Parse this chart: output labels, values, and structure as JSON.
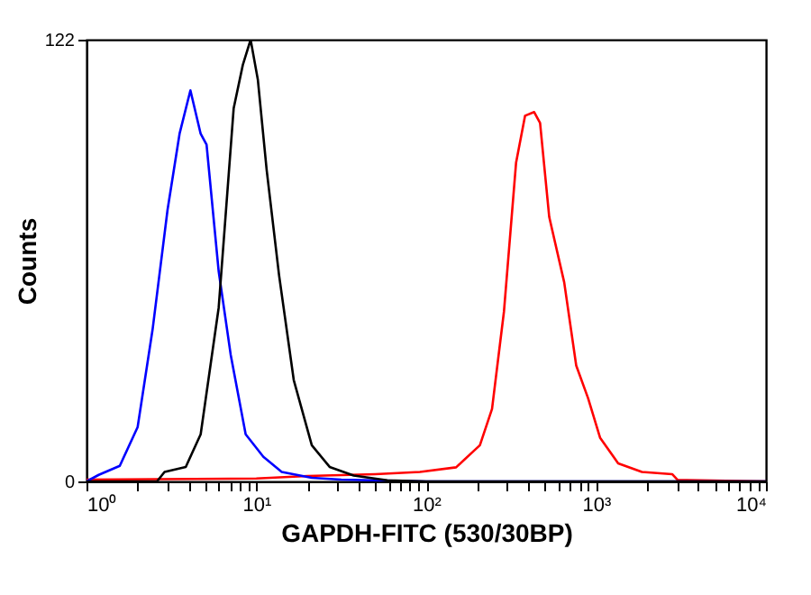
{
  "chart_data": {
    "type": "line",
    "xlabel": "GAPDH-FITC (530/30BP)",
    "ylabel": "Counts",
    "log": "x",
    "xlim": [
      1,
      10000
    ],
    "ylim": [
      0,
      122
    ],
    "yticks": [
      0,
      122
    ],
    "xticks": [
      {
        "value": 1,
        "label": "10⁰"
      },
      {
        "value": 2,
        "label": null
      },
      {
        "value": 3,
        "label": null
      },
      {
        "value": 4,
        "label": null
      },
      {
        "value": 5,
        "label": null
      },
      {
        "value": 6,
        "label": null
      },
      {
        "value": 7,
        "label": null
      },
      {
        "value": 8,
        "label": null
      },
      {
        "value": 9,
        "label": null
      },
      {
        "value": 10,
        "label": "10¹"
      },
      {
        "value": 20,
        "label": null
      },
      {
        "value": 30,
        "label": null
      },
      {
        "value": 40,
        "label": null
      },
      {
        "value": 50,
        "label": null
      },
      {
        "value": 60,
        "label": null
      },
      {
        "value": 70,
        "label": null
      },
      {
        "value": 80,
        "label": null
      },
      {
        "value": 90,
        "label": null
      },
      {
        "value": 100,
        "label": "10²"
      },
      {
        "value": 200,
        "label": null
      },
      {
        "value": 300,
        "label": null
      },
      {
        "value": 400,
        "label": null
      },
      {
        "value": 500,
        "label": null
      },
      {
        "value": 600,
        "label": null
      },
      {
        "value": 700,
        "label": null
      },
      {
        "value": 800,
        "label": null
      },
      {
        "value": 900,
        "label": null
      },
      {
        "value": 1000,
        "label": "10³"
      },
      {
        "value": 2000,
        "label": null
      },
      {
        "value": 3000,
        "label": null
      },
      {
        "value": 4000,
        "label": null
      },
      {
        "value": 5000,
        "label": null
      },
      {
        "value": 6000,
        "label": null
      },
      {
        "value": 7000,
        "label": null
      },
      {
        "value": 8000,
        "label": null
      },
      {
        "value": 9000,
        "label": null
      },
      {
        "value": 10000,
        "label": "10⁴"
      }
    ],
    "grid": false,
    "series": [
      {
        "color": "#ff0000",
        "x": [
          1,
          10,
          20,
          50,
          91.8,
          150,
          207,
          244,
          287,
          338,
          382,
          432,
          468,
          530,
          649,
          764,
          897,
          1057,
          1349,
          1862,
          2805,
          3020,
          10000
        ],
        "values": [
          0.5,
          0.8,
          1.5,
          2,
          2.6,
          3.9,
          10,
          20,
          47,
          88,
          101,
          102,
          99,
          73,
          55,
          32,
          23,
          12,
          5,
          2.6,
          2,
          0.4,
          0
        ]
      },
      {
        "color": "#0000ff",
        "x": [
          1,
          1.18,
          1.57,
          2.0,
          2.45,
          3.0,
          3.53,
          4.09,
          4.7,
          5.09,
          6.0,
          7.06,
          8.65,
          11.0,
          14.1,
          21.2,
          31.6,
          100,
          10000
        ],
        "values": [
          0,
          1.8,
          4.3,
          15,
          42,
          75,
          96,
          108,
          96,
          93,
          58,
          35,
          13,
          6.8,
          2.6,
          1,
          0.5,
          0,
          0
        ]
      },
      {
        "color": "#000000",
        "x": [
          1,
          2.6,
          2.88,
          3.84,
          4.7,
          6.0,
          7.35,
          8.32,
          9.25,
          10.2,
          11.5,
          13.6,
          16.6,
          21.2,
          27,
          37.4,
          59,
          100,
          10000
        ],
        "values": [
          0,
          0,
          2.6,
          4,
          13,
          48,
          103,
          115,
          122,
          111,
          86,
          57,
          28,
          10,
          4,
          1.6,
          0.3,
          0,
          0
        ]
      }
    ]
  }
}
